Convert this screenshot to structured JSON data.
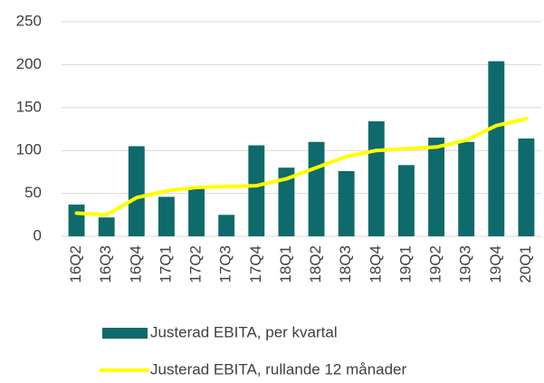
{
  "chart_data": {
    "type": "combo",
    "categories": [
      "16Q2",
      "16Q3",
      "16Q4",
      "17Q1",
      "17Q2",
      "17Q3",
      "17Q4",
      "18Q1",
      "18Q2",
      "18Q3",
      "18Q4",
      "19Q1",
      "19Q2",
      "19Q3",
      "19Q4",
      "20Q1"
    ],
    "series": [
      {
        "name": "Justerad EBITA, per kvartal",
        "type": "bar",
        "color": "#0e6a6b",
        "values": [
          37,
          22,
          105,
          46,
          56,
          25,
          106,
          80,
          110,
          76,
          134,
          83,
          115,
          110,
          204,
          114
        ]
      },
      {
        "name": "Justerad EBITA, rullande 12 månader",
        "type": "line",
        "color": "#ffff00",
        "values": [
          27,
          25,
          45,
          53,
          57,
          58,
          59,
          67,
          80,
          93,
          100,
          102,
          104,
          112,
          129,
          137
        ]
      }
    ],
    "ylim": [
      0,
      250
    ],
    "yticks": [
      0,
      50,
      100,
      150,
      200,
      250
    ],
    "grid": true,
    "legend": "bottom"
  }
}
